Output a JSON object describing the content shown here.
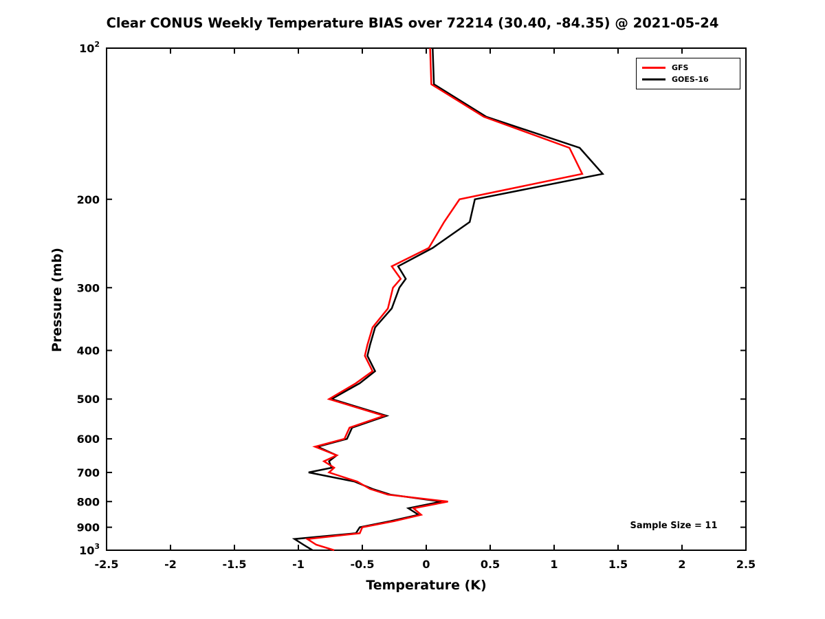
{
  "title": "Clear CONUS Weekly Temperature BIAS over 72214 (30.40, -84.35) @ 2021-05-24",
  "xlabel": "Temperature (K)",
  "ylabel": "Pressure (mb)",
  "annotation": "Sample Size = 11",
  "legend": [
    {
      "label": "GFS",
      "color": "#ff0000"
    },
    {
      "label": "GOES-16",
      "color": "#000000"
    }
  ],
  "axes": {
    "xlim": [
      -2.5,
      2.5
    ],
    "xticks": [
      "-2.5",
      "-2",
      "-1.5",
      "-1",
      "-0.5",
      "0",
      "0.5",
      "1",
      "1.5",
      "2",
      "2.5"
    ],
    "xtick_values": [
      -2.5,
      -2,
      -1.5,
      -1,
      -0.5,
      0,
      0.5,
      1,
      1.5,
      2,
      2.5
    ],
    "yscale": "log",
    "ylim": [
      100,
      1000
    ],
    "y_inverted": true,
    "yticks": [
      {
        "p": 100,
        "label": "10^2"
      },
      {
        "p": 200,
        "label": "200"
      },
      {
        "p": 300,
        "label": "300"
      },
      {
        "p": 400,
        "label": "400"
      },
      {
        "p": 500,
        "label": "500"
      },
      {
        "p": 600,
        "label": "600"
      },
      {
        "p": 700,
        "label": "700"
      },
      {
        "p": 800,
        "label": "800"
      },
      {
        "p": 900,
        "label": "900"
      },
      {
        "p": 1000,
        "label": "10^3"
      }
    ],
    "grid": false,
    "box": true,
    "legend_position": "upper right"
  },
  "chart_data": {
    "type": "line",
    "title": "Clear CONUS Weekly Temperature BIAS over 72214 (30.40, -84.35) @ 2021-05-24",
    "xlabel": "Temperature (K)",
    "ylabel": "Pressure (mb)",
    "xlim": [
      -2.5,
      2.5
    ],
    "pressure_mb": [
      100,
      118,
      137,
      158,
      178,
      200,
      222,
      250,
      272,
      288,
      300,
      330,
      360,
      390,
      410,
      440,
      465,
      500,
      540,
      570,
      600,
      622,
      647,
      665,
      685,
      700,
      730,
      755,
      775,
      800,
      825,
      850,
      875,
      900,
      925,
      950,
      975,
      1000
    ],
    "series": [
      {
        "name": "GFS",
        "color": "#ff0000",
        "values": [
          0.03,
          0.04,
          0.45,
          1.12,
          1.22,
          0.26,
          0.14,
          0.02,
          -0.27,
          -0.2,
          -0.26,
          -0.3,
          -0.42,
          -0.46,
          -0.48,
          -0.42,
          -0.55,
          -0.76,
          -0.33,
          -0.6,
          -0.64,
          -0.87,
          -0.7,
          -0.8,
          -0.72,
          -0.76,
          -0.54,
          -0.44,
          -0.3,
          0.17,
          -0.1,
          -0.04,
          -0.25,
          -0.5,
          -0.52,
          -0.93,
          -0.86,
          -0.72
        ]
      },
      {
        "name": "GOES-16",
        "color": "#000000",
        "values": [
          0.05,
          0.06,
          0.47,
          1.2,
          1.38,
          0.38,
          0.34,
          0.05,
          -0.22,
          -0.16,
          -0.21,
          -0.27,
          -0.4,
          -0.44,
          -0.46,
          -0.4,
          -0.52,
          -0.74,
          -0.31,
          -0.58,
          -0.62,
          -0.85,
          -0.7,
          -0.76,
          -0.74,
          -0.92,
          -0.56,
          -0.42,
          -0.28,
          0.12,
          -0.14,
          -0.06,
          -0.28,
          -0.52,
          -0.55,
          -1.03,
          -0.96,
          -0.89
        ]
      }
    ],
    "annotations": [
      "Sample Size = 11"
    ]
  }
}
